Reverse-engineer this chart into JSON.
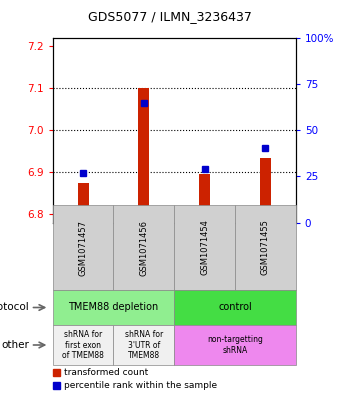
{
  "title": "GDS5077 / ILMN_3236437",
  "samples": [
    "GSM1071457",
    "GSM1071456",
    "GSM1071454",
    "GSM1071455"
  ],
  "red_values": [
    6.875,
    7.1,
    6.895,
    6.935
  ],
  "blue_values": [
    6.898,
    7.065,
    6.908,
    6.958
  ],
  "ylim_left": [
    6.78,
    7.22
  ],
  "ylim_right": [
    0,
    100
  ],
  "left_ticks": [
    6.8,
    6.9,
    7.0,
    7.1,
    7.2
  ],
  "right_ticks": [
    0,
    25,
    50,
    75,
    100
  ],
  "right_tick_labels": [
    "0",
    "25",
    "50",
    "75",
    "100%"
  ],
  "protocol_labels": [
    "TMEM88 depletion",
    "control"
  ],
  "other_labels": [
    "shRNA for\nfirst exon\nof TMEM88",
    "shRNA for\n3'UTR of\nTMEM88",
    "non-targetting\nshRNA"
  ],
  "protocol_color_left": "#90EE90",
  "protocol_color_right": "#44DD44",
  "other_color_left": "#F0F0F0",
  "other_color_right": "#EE88EE",
  "sample_bg_color": "#D0D0D0",
  "bar_color_red": "#CC2200",
  "bar_color_blue": "#0000CC",
  "legend_red_label": "transformed count",
  "legend_blue_label": "percentile rank within the sample"
}
